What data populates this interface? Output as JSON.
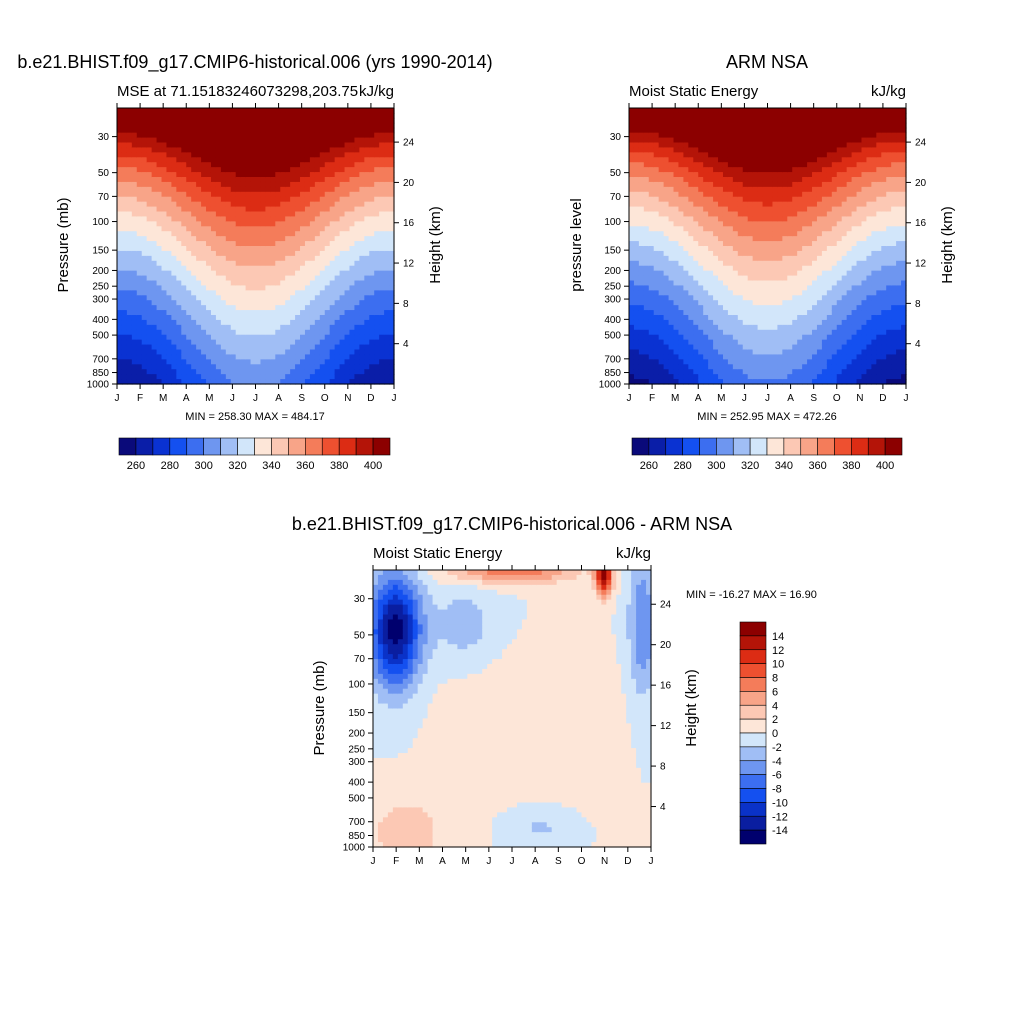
{
  "colors": {
    "mse_levels": [
      "#0a0a7a",
      "#0a1ea8",
      "#0a32d2",
      "#1450f0",
      "#3c6ef0",
      "#6e96f0",
      "#a0bef5",
      "#d2e6fa",
      "#fde6d8",
      "#fcc8b4",
      "#f8a488",
      "#f47c5a",
      "#ee5030",
      "#dc2c14",
      "#b41408",
      "#8c0000"
    ],
    "diff_levels": [
      "#00006e",
      "#0a1ea0",
      "#0a32c8",
      "#1450f0",
      "#3c6ef0",
      "#6e96f0",
      "#a0bef5",
      "#d2e6fa",
      "#fde6d8",
      "#fcc8b4",
      "#f8a488",
      "#f47c5a",
      "#ee5030",
      "#dc2c14",
      "#b41408",
      "#8c0000"
    ]
  },
  "chart_data": [
    {
      "type": "heatmap",
      "title": "b.e21.BHIST.f09_g17.CMIP6-historical.006 (yrs 1990-2014)",
      "left_label": "MSE at 71.15183246073298,203.75",
      "right_label": "kJ/kg",
      "ylabel": "Pressure (mb)",
      "y2label": "Height (km)",
      "x_ticks": [
        "J",
        "F",
        "M",
        "A",
        "M",
        "J",
        "J",
        "A",
        "S",
        "O",
        "N",
        "D",
        "J"
      ],
      "y_ticks": [
        30,
        50,
        70,
        100,
        150,
        200,
        250,
        300,
        400,
        500,
        700,
        850,
        1000
      ],
      "y2_ticks": [
        24,
        20,
        16,
        12,
        8,
        4
      ],
      "min_max": "MIN = 258.30 MAX = 484.17",
      "colorbar_labels": [
        260,
        280,
        300,
        320,
        340,
        360,
        380,
        400
      ]
    },
    {
      "type": "heatmap",
      "title": "ARM NSA",
      "left_label": "Moist Static Energy",
      "right_label": "kJ/kg",
      "ylabel": "pressure level",
      "y2label": "Height (km)",
      "x_ticks": [
        "J",
        "F",
        "M",
        "A",
        "M",
        "J",
        "J",
        "A",
        "S",
        "O",
        "N",
        "D",
        "J"
      ],
      "y_ticks": [
        30,
        50,
        70,
        100,
        150,
        200,
        250,
        300,
        400,
        500,
        700,
        850,
        1000
      ],
      "y2_ticks": [
        24,
        20,
        16,
        12,
        8,
        4
      ],
      "min_max": "MIN = 252.95 MAX = 472.26",
      "colorbar_labels": [
        260,
        280,
        300,
        320,
        340,
        360,
        380,
        400
      ]
    },
    {
      "type": "heatmap",
      "title": "b.e21.BHIST.f09_g17.CMIP6-historical.006 - ARM NSA",
      "left_label": "Moist Static Energy",
      "right_label": "kJ/kg",
      "ylabel": "Pressure (mb)",
      "y2label": "Height (km)",
      "x_ticks": [
        "J",
        "F",
        "M",
        "A",
        "M",
        "J",
        "J",
        "A",
        "S",
        "O",
        "N",
        "D",
        "J"
      ],
      "y_ticks": [
        30,
        50,
        70,
        100,
        150,
        200,
        250,
        300,
        400,
        500,
        700,
        850,
        1000
      ],
      "y2_ticks": [
        24,
        20,
        16,
        12,
        8,
        4
      ],
      "min_max": "MIN = -16.27 MAX =  16.90",
      "colorbar_labels": [
        14,
        12,
        10,
        8,
        6,
        4,
        2,
        0,
        -2,
        -4,
        -6,
        -8,
        -10,
        -12,
        -14
      ]
    }
  ]
}
